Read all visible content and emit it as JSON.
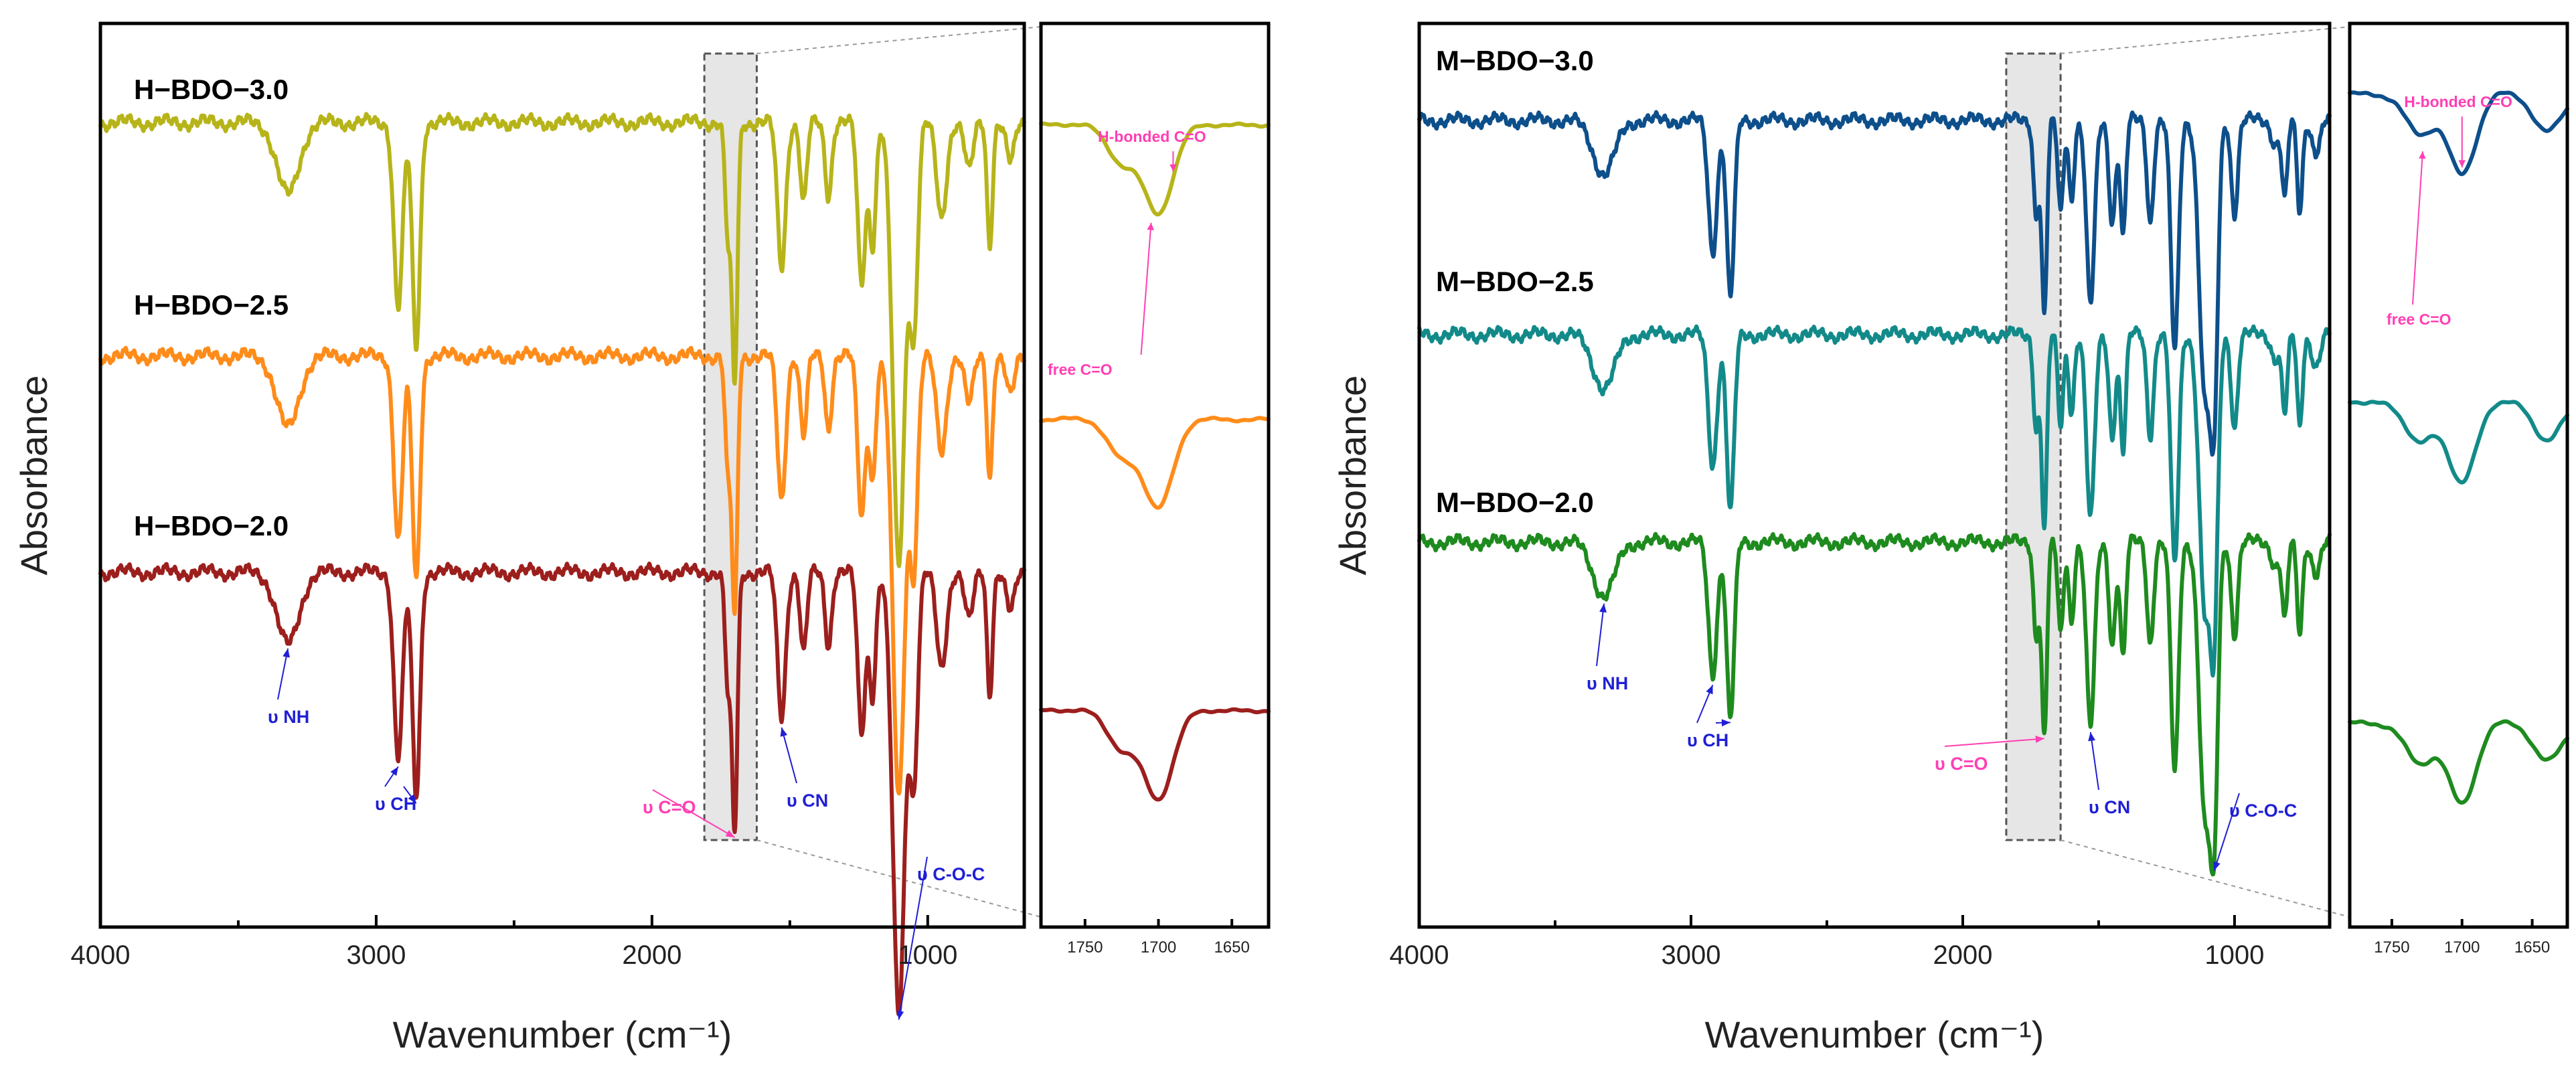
{
  "chart_data": [
    {
      "id": "H",
      "type": "line",
      "xlabel": "Wavenumber (cm⁻¹)",
      "ylabel": "Absorbance",
      "xlim": [
        4000,
        650
      ],
      "xticks": [
        4000,
        3000,
        2000,
        1000
      ],
      "xtick_labels": [
        "4000",
        "3000",
        "2000",
        "1000"
      ],
      "highlight_region": [
        1810,
        1620
      ],
      "series": [
        {
          "name": "H−BDO−3.0",
          "color": "#b7b41a",
          "offset": 2,
          "peaks": [
            [
              3320,
              0.09,
              40
            ],
            [
              2920,
              0.23,
              16
            ],
            [
              2855,
              0.28,
              14
            ],
            [
              1725,
              0.14,
              10
            ],
            [
              1700,
              0.32,
              10
            ],
            [
              1530,
              0.18,
              15
            ],
            [
              1450,
              0.1,
              12
            ],
            [
              1360,
              0.09,
              12
            ],
            [
              1240,
              0.2,
              14
            ],
            [
              1200,
              0.15,
              12
            ],
            [
              1105,
              0.55,
              22
            ],
            [
              1050,
              0.25,
              14
            ],
            [
              950,
              0.12,
              18
            ],
            [
              850,
              0.06,
              15
            ],
            [
              775,
              0.15,
              10
            ],
            [
              700,
              0.05,
              15
            ]
          ]
        },
        {
          "name": "H−BDO−2.5",
          "color": "#ff8c1a",
          "offset": 1,
          "peaks": [
            [
              3320,
              0.09,
              40
            ],
            [
              2920,
              0.23,
              16
            ],
            [
              2855,
              0.28,
              14
            ],
            [
              1725,
              0.14,
              10
            ],
            [
              1700,
              0.32,
              10
            ],
            [
              1530,
              0.18,
              15
            ],
            [
              1450,
              0.1,
              12
            ],
            [
              1360,
              0.09,
              12
            ],
            [
              1240,
              0.2,
              14
            ],
            [
              1200,
              0.15,
              12
            ],
            [
              1105,
              0.55,
              22
            ],
            [
              1050,
              0.25,
              14
            ],
            [
              950,
              0.12,
              18
            ],
            [
              850,
              0.06,
              15
            ],
            [
              775,
              0.15,
              10
            ],
            [
              700,
              0.05,
              15
            ]
          ]
        },
        {
          "name": "H−BDO−2.0",
          "color": "#9c1f1d",
          "offset": 0,
          "peaks": [
            [
              3320,
              0.09,
              40
            ],
            [
              2920,
              0.23,
              16
            ],
            [
              2855,
              0.28,
              14
            ],
            [
              1725,
              0.14,
              10
            ],
            [
              1700,
              0.32,
              10
            ],
            [
              1530,
              0.18,
              15
            ],
            [
              1450,
              0.1,
              12
            ],
            [
              1360,
              0.09,
              12
            ],
            [
              1240,
              0.2,
              14
            ],
            [
              1200,
              0.15,
              12
            ],
            [
              1105,
              0.55,
              22
            ],
            [
              1050,
              0.25,
              14
            ],
            [
              950,
              0.12,
              18
            ],
            [
              850,
              0.06,
              15
            ],
            [
              775,
              0.15,
              10
            ],
            [
              700,
              0.05,
              15
            ]
          ]
        }
      ],
      "annotations": [
        {
          "text": "υ NH",
          "color": "#1f1fd6",
          "at": 3320
        },
        {
          "text": "υ CH",
          "color": "#1f1fd6",
          "at": [
            2920,
            2855
          ]
        },
        {
          "text": "υ C=O",
          "color": "#ff3fb4",
          "at": 1700
        },
        {
          "text": "υ CN",
          "color": "#1f1fd6",
          "at": 1530
        },
        {
          "text": "υ C-O-C",
          "color": "#1f1fd6",
          "at": 1105
        }
      ],
      "inset": {
        "xlim": [
          1780,
          1625
        ],
        "xticks": [
          1750,
          1700,
          1650
        ],
        "xtick_labels": [
          "1750",
          "1700",
          "1650"
        ],
        "annotations": [
          {
            "text": "H-bonded C=O",
            "color": "#ff3fb4",
            "at": 1690
          },
          {
            "text": "free C=O",
            "color": "#ff3fb4",
            "at": 1705
          }
        ]
      }
    },
    {
      "id": "M",
      "type": "line",
      "xlabel": "Wavenumber (cm⁻¹)",
      "ylabel": "Absorbance",
      "xlim": [
        4000,
        650
      ],
      "xticks": [
        4000,
        3000,
        2000,
        1000
      ],
      "xtick_labels": [
        "4000",
        "3000",
        "2000",
        "1000"
      ],
      "highlight_region": [
        1840,
        1640
      ],
      "series": [
        {
          "name": "M−BDO−3.0",
          "color": "#0d4f8b",
          "offset": 2,
          "peaks": [
            [
              3320,
              0.07,
              40
            ],
            [
              2920,
              0.17,
              16
            ],
            [
              2855,
              0.23,
              14
            ],
            [
              1730,
              0.12,
              10
            ],
            [
              1700,
              0.25,
              10
            ],
            [
              1640,
              0.12,
              10
            ],
            [
              1600,
              0.1,
              10
            ],
            [
              1530,
              0.24,
              15
            ],
            [
              1450,
              0.13,
              12
            ],
            [
              1410,
              0.15,
              10
            ],
            [
              1310,
              0.13,
              12
            ],
            [
              1220,
              0.3,
              14
            ],
            [
              1110,
              0.35,
              20
            ],
            [
              1075,
              0.35,
              14
            ],
            [
              1000,
              0.12,
              12
            ],
            [
              850,
              0.03,
              15
            ],
            [
              815,
              0.1,
              10
            ],
            [
              760,
              0.12,
              10
            ],
            [
              700,
              0.04,
              15
            ]
          ]
        },
        {
          "name": "M−BDO−2.5",
          "color": "#138a8a",
          "offset": 1,
          "peaks": [
            [
              3320,
              0.07,
              40
            ],
            [
              2920,
              0.17,
              16
            ],
            [
              2855,
              0.23,
              14
            ],
            [
              1730,
              0.12,
              10
            ],
            [
              1700,
              0.25,
              10
            ],
            [
              1640,
              0.12,
              10
            ],
            [
              1600,
              0.1,
              10
            ],
            [
              1530,
              0.24,
              15
            ],
            [
              1450,
              0.13,
              12
            ],
            [
              1410,
              0.15,
              10
            ],
            [
              1310,
              0.13,
              12
            ],
            [
              1220,
              0.3,
              14
            ],
            [
              1110,
              0.35,
              20
            ],
            [
              1075,
              0.35,
              14
            ],
            [
              1000,
              0.12,
              12
            ],
            [
              850,
              0.03,
              15
            ],
            [
              815,
              0.1,
              10
            ],
            [
              760,
              0.12,
              10
            ],
            [
              700,
              0.04,
              15
            ]
          ]
        },
        {
          "name": "M−BDO−2.0",
          "color": "#1e8b1e",
          "offset": 0,
          "peaks": [
            [
              3320,
              0.07,
              40
            ],
            [
              2920,
              0.17,
              16
            ],
            [
              2855,
              0.23,
              14
            ],
            [
              1730,
              0.12,
              10
            ],
            [
              1700,
              0.25,
              10
            ],
            [
              1640,
              0.12,
              10
            ],
            [
              1600,
              0.1,
              10
            ],
            [
              1530,
              0.24,
              15
            ],
            [
              1450,
              0.13,
              12
            ],
            [
              1410,
              0.15,
              10
            ],
            [
              1310,
              0.13,
              12
            ],
            [
              1220,
              0.3,
              14
            ],
            [
              1110,
              0.35,
              20
            ],
            [
              1075,
              0.35,
              14
            ],
            [
              1000,
              0.12,
              12
            ],
            [
              850,
              0.03,
              15
            ],
            [
              815,
              0.1,
              10
            ],
            [
              760,
              0.12,
              10
            ],
            [
              700,
              0.04,
              15
            ]
          ]
        }
      ],
      "annotations": [
        {
          "text": "υ NH",
          "color": "#1f1fd6",
          "at": 3320
        },
        {
          "text": "υ CH",
          "color": "#1f1fd6",
          "at": [
            2920,
            2855
          ]
        },
        {
          "text": "υ C=O",
          "color": "#ff3fb4",
          "at": 1700
        },
        {
          "text": "υ CN",
          "color": "#1f1fd6",
          "at": 1530
        },
        {
          "text": "υ C-O-C",
          "color": "#1f1fd6",
          "at": 1075
        }
      ],
      "inset": {
        "xlim": [
          1780,
          1625
        ],
        "xticks": [
          1750,
          1700,
          1650
        ],
        "xtick_labels": [
          "1750",
          "1700",
          "1650"
        ],
        "annotations": [
          {
            "text": "H-bonded C=O",
            "color": "#ff3fb4",
            "at": 1700
          },
          {
            "text": "free C=O",
            "color": "#ff3fb4",
            "at": 1728
          }
        ]
      }
    }
  ]
}
